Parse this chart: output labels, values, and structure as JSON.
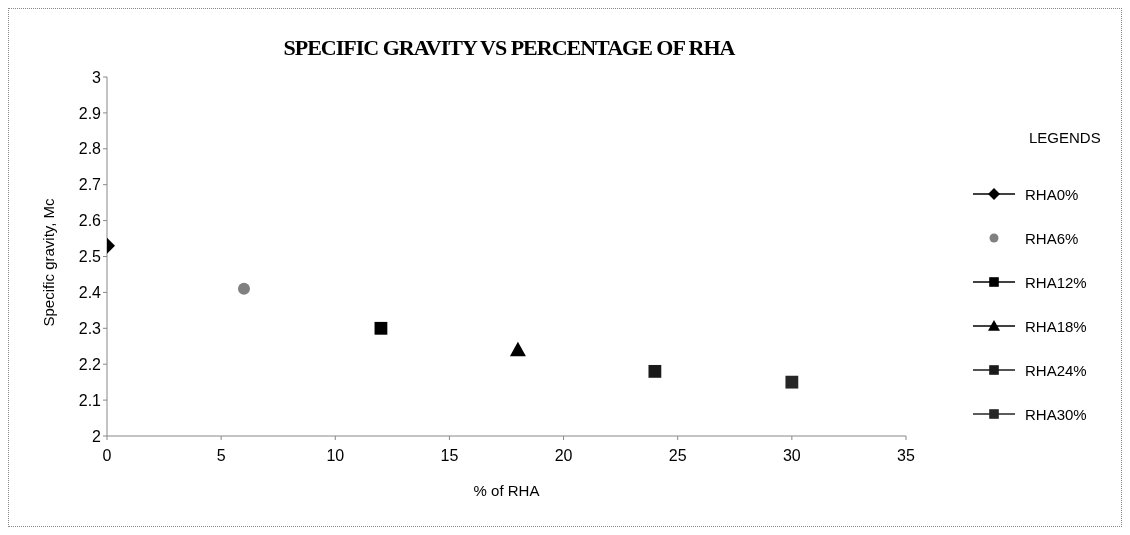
{
  "chart_data": {
    "type": "scatter",
    "title": "SPECIFIC GRAVITY VS PERCENTAGE OF RHA",
    "xlabel": "% of RHA",
    "ylabel": "Specific gravity, Mc",
    "legend_title": "LEGENDS",
    "legend": "right",
    "grid": false,
    "xlim": [
      0,
      35
    ],
    "xticks": [
      0,
      5,
      10,
      15,
      20,
      25,
      30,
      35
    ],
    "ylim": [
      2,
      3
    ],
    "yticks": [
      2,
      2.1,
      2.2,
      2.3,
      2.4,
      2.5,
      2.6,
      2.7,
      2.8,
      2.9,
      3
    ],
    "series": [
      {
        "name": "RHA0%",
        "color": "#000000",
        "marker": "diamond",
        "x": [
          0
        ],
        "values": [
          2.53
        ]
      },
      {
        "name": "RHA6%",
        "color": "#808080",
        "marker": "circle",
        "x": [
          6
        ],
        "values": [
          2.41
        ]
      },
      {
        "name": "RHA12%",
        "color": "#000000",
        "marker": "square",
        "x": [
          12
        ],
        "values": [
          2.3
        ]
      },
      {
        "name": "RHA18%",
        "color": "#000000",
        "marker": "triangle",
        "x": [
          18
        ],
        "values": [
          2.24
        ]
      },
      {
        "name": "RHA24%",
        "color": "#1a1a1a",
        "marker": "square",
        "x": [
          24
        ],
        "values": [
          2.18
        ]
      },
      {
        "name": "RHA30%",
        "color": "#262626",
        "marker": "square",
        "x": [
          30
        ],
        "values": [
          2.15
        ]
      }
    ]
  }
}
